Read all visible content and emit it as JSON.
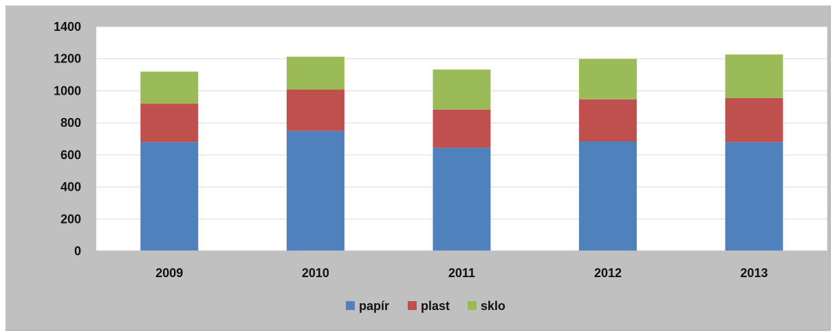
{
  "chart_data": {
    "type": "bar",
    "stacked": true,
    "categories": [
      "2009",
      "2010",
      "2011",
      "2012",
      "2013"
    ],
    "series": [
      {
        "name": "papír",
        "color": "#4f81bd",
        "values": [
          680,
          750,
          645,
          685,
          680
        ]
      },
      {
        "name": "plast",
        "color": "#c0504d",
        "values": [
          240,
          258,
          238,
          262,
          275
        ]
      },
      {
        "name": "sklo",
        "color": "#9bbb59",
        "values": [
          200,
          205,
          250,
          252,
          272
        ]
      }
    ],
    "ylim": [
      0,
      1400
    ],
    "yticks": [
      "0",
      "200",
      "400",
      "600",
      "800",
      "1000",
      "1200",
      "1400"
    ],
    "grid": true,
    "legend_position": "bottom",
    "background_color": "#c0c0c0",
    "plot_background_color": "#ffffff",
    "gridline_color": "#d9d9d9"
  }
}
